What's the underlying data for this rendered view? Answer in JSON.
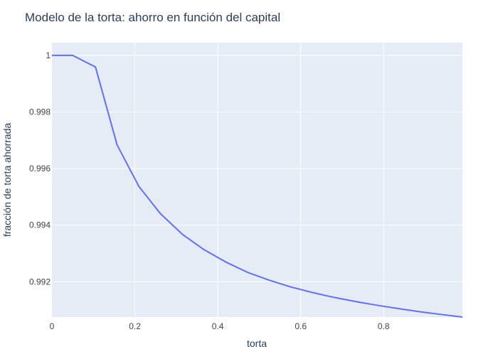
{
  "chart_data": {
    "type": "line",
    "title": "Modelo de la torta: ahorro en función del capital",
    "xlabel": "torta",
    "ylabel": "fracción de torta ahorrada",
    "xlim": [
      0,
      0.99
    ],
    "ylim": [
      0.99075,
      1.00045
    ],
    "xticks": [
      0,
      0.2,
      0.4,
      0.6,
      0.8
    ],
    "xtick_labels": [
      "0",
      "0.2",
      "0.4",
      "0.6",
      "0.8"
    ],
    "yticks": [
      0.992,
      0.994,
      0.996,
      0.998,
      1
    ],
    "ytick_labels": [
      "0.992",
      "0.994",
      "0.996",
      "0.998",
      "1"
    ],
    "grid": true,
    "colors": {
      "line": "#636efa",
      "plot_bg": "#e5ecf6",
      "grid": "#ffffff",
      "text": "#2a3f5f",
      "tick_text": "#444444"
    },
    "series": [
      {
        "x": [
          0,
          0.05,
          0.105,
          0.157,
          0.21,
          0.262,
          0.315,
          0.367,
          0.42,
          0.472,
          0.525,
          0.577,
          0.63,
          0.682,
          0.735,
          0.787,
          0.84,
          0.892,
          0.945,
          0.99
        ],
        "y": [
          1.0,
          1.0,
          0.99959,
          0.99684,
          0.99536,
          0.9944,
          0.99367,
          0.99313,
          0.99269,
          0.99233,
          0.99205,
          0.99181,
          0.99161,
          0.99144,
          0.99129,
          0.99116,
          0.99104,
          0.99093,
          0.99083,
          0.99075
        ]
      }
    ]
  }
}
